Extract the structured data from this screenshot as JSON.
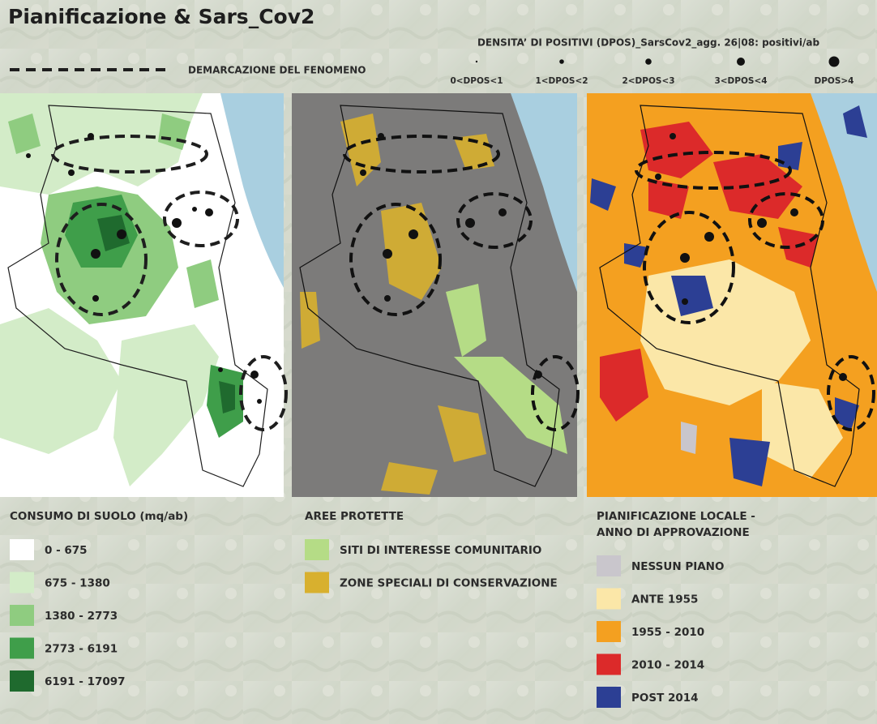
{
  "header": {
    "title": "Pianificazione & Sars_Cov2"
  },
  "phenomenon": {
    "label": "DEMARCAZIONE DEL FENOMENO"
  },
  "density": {
    "title": "DENSITA’ DI POSITIVI (DPOS)_SarsCov2_agg. 26|08: positivi/ab",
    "classes": [
      "0<DPOS<1",
      "1<DPOS<2",
      "2<DPOS<3",
      "3<DPOS<4",
      "DPOS>4"
    ]
  },
  "legends": [
    {
      "title_lines": [
        "CONSUMO DI SUOLO (mq/ab)"
      ],
      "items": [
        {
          "label": "0 - 675",
          "color": "#ffffff"
        },
        {
          "label": "675 - 1380",
          "color": "#d3ecc8"
        },
        {
          "label": "1380 - 2773",
          "color": "#8fcc80"
        },
        {
          "label": "2773 - 6191",
          "color": "#3f9e4a"
        },
        {
          "label": "6191 - 17097",
          "color": "#1f6a2e"
        }
      ]
    },
    {
      "title_lines": [
        "AREE PROTETTE"
      ],
      "items": [
        {
          "label": "SITI DI INTERESSE COMUNITARIO",
          "color": "#b5dc86"
        },
        {
          "label": "ZONE SPECIALI DI CONSERVAZIONE",
          "color": "#d8b02e"
        }
      ]
    },
    {
      "title_lines": [
        "PIANIFICAZIONE LOCALE -",
        "ANNO DI APPROVAZIONE"
      ],
      "items": [
        {
          "label": "NESSUN PIANO",
          "color": "#c9c6cc"
        },
        {
          "label": "ANTE 1955",
          "color": "#fbe7a8"
        },
        {
          "label": "1955 - 2010",
          "color": "#f4a020"
        },
        {
          "label": "2010 - 2014",
          "color": "#dc2a2a"
        },
        {
          "label": "POST 2014",
          "color": "#2c3f94"
        }
      ]
    }
  ]
}
